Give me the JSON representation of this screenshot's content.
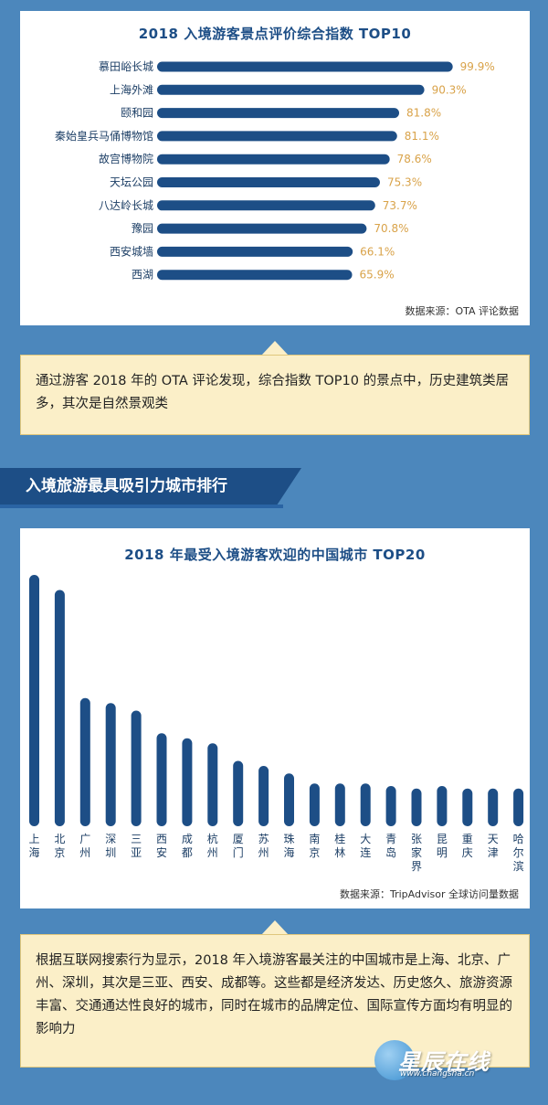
{
  "chart_data": [
    {
      "type": "bar",
      "orientation": "horizontal",
      "title": "2018 入境游客景点评价综合指数 TOP10",
      "categories": [
        "慕田峪长城",
        "上海外滩",
        "颐和园",
        "秦始皇兵马俑博物馆",
        "故宫博物院",
        "天坛公园",
        "八达岭长城",
        "豫园",
        "西安城墙",
        "西湖"
      ],
      "values": [
        99.9,
        90.3,
        81.8,
        81.1,
        78.6,
        75.3,
        73.7,
        70.8,
        66.1,
        65.9
      ],
      "value_labels": [
        "99.9%",
        "90.3%",
        "81.8%",
        "81.1%",
        "78.6%",
        "75.3%",
        "73.7%",
        "70.8%",
        "66.1%",
        "65.9%"
      ],
      "unit": "%",
      "xlim": [
        0,
        100
      ],
      "grid": false,
      "source": "数据来源：OTA 评论数据",
      "colors": {
        "bar": "#1d4e86",
        "label": "#d9a34a"
      }
    },
    {
      "type": "bar",
      "orientation": "vertical",
      "title": "2018 年最受入境游客欢迎的中国城市 TOP20",
      "categories": [
        "上海",
        "北京",
        "广州",
        "深圳",
        "三亚",
        "西安",
        "成都",
        "杭州",
        "厦门",
        "苏州",
        "珠海",
        "南京",
        "桂林",
        "大连",
        "青岛",
        "张家界",
        "昆明",
        "重庆",
        "天津",
        "哈尔滨"
      ],
      "values": [
        100,
        94,
        51,
        49,
        46,
        37,
        35,
        33,
        26,
        24,
        21,
        17,
        17,
        17,
        16,
        15,
        16,
        15,
        15,
        15
      ],
      "ylim": [
        0,
        100
      ],
      "grid": false,
      "source": "数据来源：TripAdvisor 全球访问量数据",
      "colors": {
        "bar": "#1d4e86"
      }
    }
  ],
  "callouts": {
    "first": "通过游客 2018 年的 OTA 评论发现，综合指数 TOP10 的景点中，历史建筑类居多，其次是自然景观类",
    "second": "根据互联网搜索行为显示，2018 年入境游客最关注的中国城市是上海、北京、广州、深圳，其次是三亚、西安、成都等。这些都是经济发达、历史悠久、旅游资源丰富、交通通达性良好的城市，同时在城市的品牌定位、国际宣传方面均有明显的影响力"
  },
  "section_header": "入境旅游最具吸引力城市排行",
  "watermark": {
    "text": "星辰在线",
    "url": "www.changsha.cn"
  },
  "colors": {
    "background": "#4c87bc",
    "panel": "#ffffff",
    "dark_blue": "#1d4e86",
    "callout_bg": "#fbefc8"
  }
}
